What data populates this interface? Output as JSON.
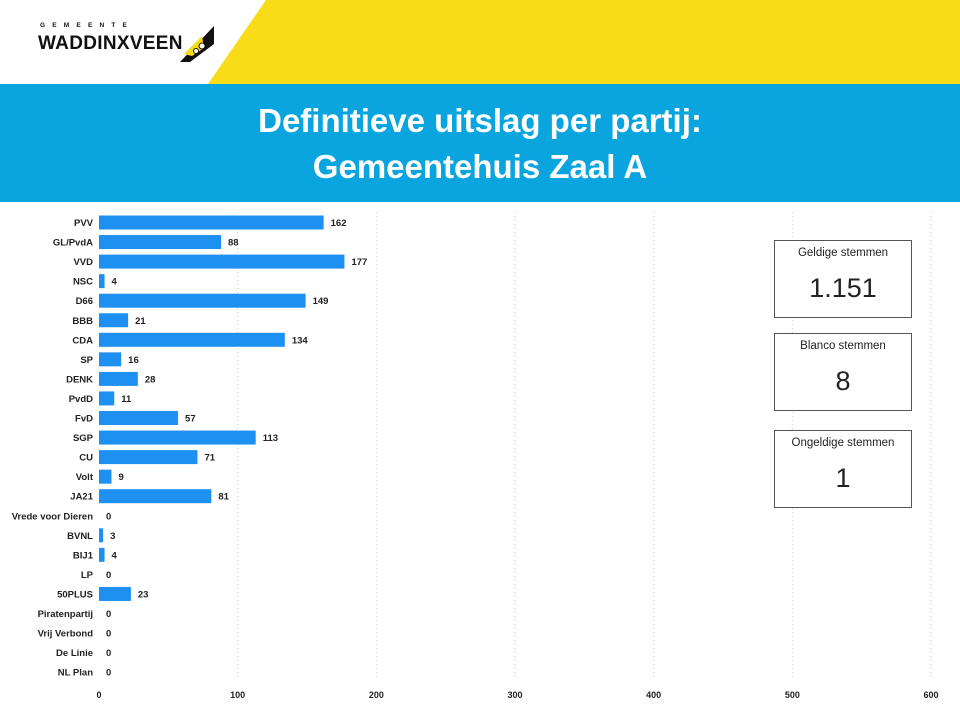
{
  "logo": {
    "municipality_label": "GEMEENTE",
    "name": "WADDINXVEEN"
  },
  "title": {
    "line1": "Definitieve uitslag per partij:",
    "line2": "Gemeentehuis Zaal A"
  },
  "colors": {
    "accent_blue": "#0aa4de",
    "accent_yellow": "#f8dc17",
    "bar_blue": "#1e90f2"
  },
  "cards": [
    {
      "label": "Geldige stemmen",
      "value": "1.151"
    },
    {
      "label": "Blanco stemmen",
      "value": "8"
    },
    {
      "label": "Ongeldige stemmen",
      "value": "1"
    }
  ],
  "chart_data": {
    "type": "bar",
    "orientation": "horizontal",
    "title": "",
    "xlabel": "",
    "ylabel": "",
    "xlim": [
      0,
      600
    ],
    "xticks": [
      0,
      100,
      200,
      300,
      400,
      500,
      600
    ],
    "grid": true,
    "categories": [
      "PVV",
      "GL/PvdA",
      "VVD",
      "NSC",
      "D66",
      "BBB",
      "CDA",
      "SP",
      "DENK",
      "PvdD",
      "FvD",
      "SGP",
      "CU",
      "Volt",
      "JA21",
      "Vrede voor Dieren",
      "BVNL",
      "BIJ1",
      "LP",
      "50PLUS",
      "Piratenpartij",
      "Vrij Verbond",
      "De Linie",
      "NL Plan"
    ],
    "values": [
      162,
      88,
      177,
      4,
      149,
      21,
      134,
      16,
      28,
      11,
      57,
      113,
      71,
      9,
      81,
      0,
      3,
      4,
      0,
      23,
      0,
      0,
      0,
      0
    ]
  }
}
